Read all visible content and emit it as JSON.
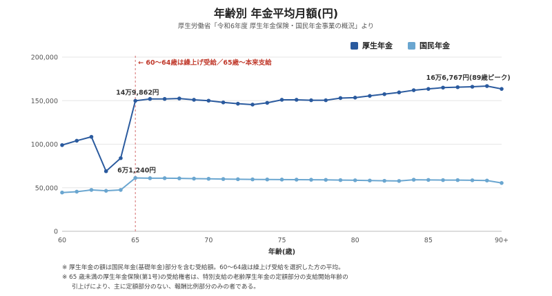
{
  "header": {
    "title": "年齢別 年金平均月額(円)",
    "subtitle": "厚生労働省「令和6年度 厚生年金保険・国民年金事業の概況」より"
  },
  "colors": {
    "kousei": "#2a5a9e",
    "kokumin": "#6aa6d0",
    "vline": "#d46a6a",
    "grid": "#e6e6e6"
  },
  "legend": {
    "kousei": "厚生年金",
    "kokumin": "国民年金"
  },
  "annotations": {
    "vline_label": "← 60〜64歳は繰上げ受給／65歳〜本来支給",
    "kousei_65": "14万9,862円",
    "kokumin_65": "6万1,240円",
    "kousei_peak": "16万6,767円(89歳ピーク)"
  },
  "notes": {
    "line1": "※ 厚生年金の額は国民年金(基礎年金)部分を含む受給額。60〜64歳は繰上げ受給を選択した方の平均。",
    "line2": "※ 65 歳未満の厚生年金保険(第1号)の受給権者は、特別支給の老齢厚生年金の定額部分の支給開始年齢の",
    "line3": "引上げにより、主に定額部分のない、報酬比例部分のみの者である。"
  },
  "chart_data": {
    "type": "line",
    "title": "年齢別 年金平均月額(円)",
    "xlabel": "年齢(歳)",
    "ylabel": "",
    "x": [
      60,
      61,
      62,
      63,
      64,
      65,
      66,
      67,
      68,
      69,
      70,
      71,
      72,
      73,
      74,
      75,
      76,
      77,
      78,
      79,
      80,
      81,
      82,
      83,
      84,
      85,
      86,
      87,
      88,
      89,
      90
    ],
    "x_ticks": [
      60,
      65,
      70,
      75,
      80,
      85,
      90
    ],
    "x_tick_labels": [
      "60",
      "65",
      "70",
      "75",
      "80",
      "85",
      "90+"
    ],
    "ylim": [
      0,
      200000
    ],
    "y_ticks": [
      0,
      50000,
      100000,
      150000,
      200000
    ],
    "y_tick_labels": [
      "0",
      "50,000",
      "100,000",
      "150,000",
      "200,000"
    ],
    "grid": true,
    "legend_position": "top-right",
    "vertical_marker_x": 65,
    "series": [
      {
        "name": "厚生年金",
        "values": [
          99000,
          104000,
          108500,
          69000,
          84000,
          149862,
          152000,
          152000,
          152500,
          151000,
          150000,
          148000,
          146500,
          145500,
          147500,
          151000,
          151000,
          150500,
          150500,
          153000,
          153500,
          155500,
          157500,
          159500,
          162000,
          163500,
          165000,
          165500,
          166000,
          166767,
          163500
        ]
      },
      {
        "name": "国民年金",
        "values": [
          44500,
          45500,
          47500,
          46500,
          47500,
          61240,
          61000,
          61000,
          60800,
          60500,
          60300,
          60000,
          59800,
          59600,
          59500,
          59400,
          59300,
          59200,
          59100,
          58800,
          58600,
          58300,
          58000,
          57800,
          59200,
          59000,
          58800,
          58800,
          58600,
          58300,
          55500
        ]
      }
    ]
  }
}
